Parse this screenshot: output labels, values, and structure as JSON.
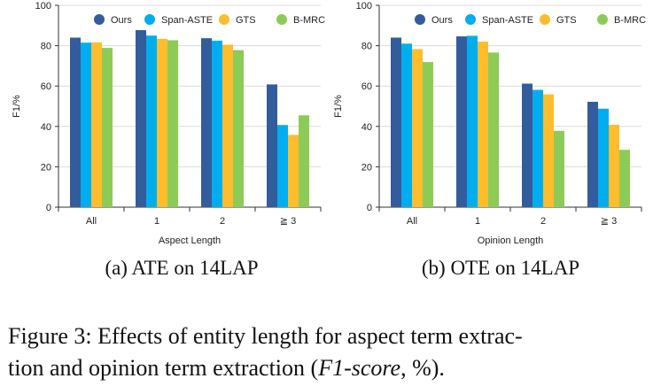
{
  "chart_data": [
    {
      "type": "bar",
      "categories": [
        "All",
        "1",
        "2",
        "≧ 3"
      ],
      "xlabel": "Aspect Length",
      "ylabel": "F1/%",
      "ylim": [
        0,
        100
      ],
      "yticks": [
        0,
        20,
        40,
        60,
        80,
        100
      ],
      "grid": true,
      "legend": "top",
      "series": [
        {
          "name": "Ours",
          "color": "#335C9C",
          "values": [
            84.0,
            87.7,
            83.7,
            60.8
          ]
        },
        {
          "name": "Span-ASTE",
          "color": "#00AEEF",
          "values": [
            81.5,
            85.0,
            82.5,
            40.7
          ]
        },
        {
          "name": "GTS",
          "color": "#FDBD2C",
          "values": [
            81.6,
            83.4,
            80.5,
            35.8
          ]
        },
        {
          "name": "B-MRC",
          "color": "#8DCB57",
          "values": [
            78.9,
            82.7,
            77.8,
            45.5
          ]
        }
      ],
      "caption": "(a) ATE on 14LAP"
    },
    {
      "type": "bar",
      "categories": [
        "All",
        "1",
        "2",
        "≧ 3"
      ],
      "xlabel": "Opinion Length",
      "ylabel": "F1/%",
      "ylim": [
        0,
        100
      ],
      "yticks": [
        0,
        20,
        40,
        60,
        80,
        100
      ],
      "grid": true,
      "legend": "top",
      "series": [
        {
          "name": "Ours",
          "color": "#335C9C",
          "values": [
            84.0,
            84.6,
            61.2,
            52.2
          ]
        },
        {
          "name": "Span-ASTE",
          "color": "#00AEEF",
          "values": [
            81.0,
            84.9,
            58.1,
            48.8
          ]
        },
        {
          "name": "GTS",
          "color": "#FDBD2C",
          "values": [
            78.3,
            82.0,
            55.9,
            40.8
          ]
        },
        {
          "name": "B-MRC",
          "color": "#8DCB57",
          "values": [
            71.9,
            76.6,
            37.8,
            28.4
          ]
        }
      ],
      "caption": "(b) OTE on 14LAP"
    }
  ],
  "figure_caption": {
    "line1": "Figure 3: Effects of entity length for aspect term extrac-",
    "line2_pre": "tion and opinion term extraction (",
    "line2_em": "F1-score",
    "line2_post": ", %)."
  }
}
